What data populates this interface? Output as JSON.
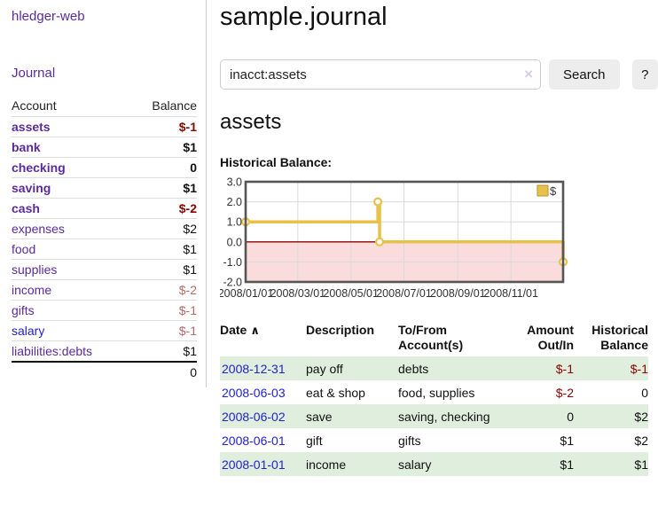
{
  "app_title": "hledger-web",
  "nav": {
    "journal_label": "Journal"
  },
  "sidebar_table": {
    "account_header": "Account",
    "balance_header": "Balance",
    "accounts": [
      {
        "name": "assets",
        "depth": 1,
        "bold": true,
        "link_color": "purple",
        "balance": "$-1",
        "balance_class": "neg-strong"
      },
      {
        "name": "bank",
        "depth": 2,
        "bold": true,
        "link_color": "purple",
        "balance": "$1",
        "balance_class": ""
      },
      {
        "name": "checking",
        "depth": 3,
        "bold": true,
        "link_color": "purple",
        "balance": "0",
        "balance_class": ""
      },
      {
        "name": "saving",
        "depth": 3,
        "bold": true,
        "link_color": "purple",
        "balance": "$1",
        "balance_class": ""
      },
      {
        "name": "cash",
        "depth": 2,
        "bold": true,
        "link_color": "purple",
        "balance": "$-2",
        "balance_class": "neg-strong"
      },
      {
        "name": "expenses",
        "depth": 1,
        "bold": false,
        "link_color": "purple",
        "balance": "$2",
        "balance_class": ""
      },
      {
        "name": "food",
        "depth": 2,
        "bold": false,
        "link_color": "purple",
        "balance": "$1",
        "balance_class": ""
      },
      {
        "name": "supplies",
        "depth": 2,
        "bold": false,
        "link_color": "purple",
        "balance": "$1",
        "balance_class": ""
      },
      {
        "name": "income",
        "depth": 1,
        "bold": false,
        "link_color": "purple",
        "balance": "$-2",
        "balance_class": "neg-soft"
      },
      {
        "name": "gifts",
        "depth": 2,
        "bold": false,
        "link_color": "purple",
        "balance": "$-1",
        "balance_class": "neg-soft"
      },
      {
        "name": "salary",
        "depth": 2,
        "bold": false,
        "link_color": "blue",
        "balance": "$-1",
        "balance_class": "neg-soft"
      },
      {
        "name": "liabilities:debts",
        "depth": 1,
        "bold": false,
        "link_color": "purple",
        "balance": "$1",
        "balance_class": ""
      }
    ],
    "total": "0"
  },
  "header": {
    "title": "sample.journal"
  },
  "search": {
    "value": "inacct:assets",
    "clear_icon": "×",
    "search_label": "Search",
    "help_label": "?"
  },
  "account_page": {
    "title": "assets",
    "chart_label": "Historical Balance:"
  },
  "chart_data": {
    "type": "line",
    "step": true,
    "title": "Historical Balance",
    "series": [
      {
        "name": "$",
        "color": "#e8c04a",
        "points": [
          [
            "2008-01-01",
            1
          ],
          [
            "2008-06-01",
            2
          ],
          [
            "2008-06-03",
            0
          ],
          [
            "2008-12-31",
            -1
          ]
        ]
      }
    ],
    "x_range": [
      "2008-01-01",
      "2008-12-31"
    ],
    "x_ticks": [
      "2008/01/01",
      "2008/03/01",
      "2008/05/01",
      "2008/07/01",
      "2008/09/01",
      "2008/11/01"
    ],
    "y_ticks": [
      "3.0",
      "2.0",
      "1.0",
      "0.0",
      "-1.0",
      "-2.0"
    ],
    "ylim": [
      -2,
      3
    ],
    "grid": true,
    "legend_position": "top-right",
    "legend_label": "$",
    "colors": {
      "negative_fill": "#fbdcdc",
      "zero_line": "#8e0000",
      "grid": "#d9d9d9",
      "plot_border": "#555555",
      "marker_fill": "#ffffff",
      "axis_text": "#333333",
      "legend_fill": "#e8c04a",
      "legend_border": "#b2953a"
    }
  },
  "register": {
    "headers": {
      "date": "Date",
      "sort_icon": "∧",
      "description": "Description",
      "accounts": "To/From Account(s)",
      "amount": "Amount Out/In",
      "balance": "Historical Balance"
    },
    "rows": [
      {
        "date": "2008-12-31",
        "description": "pay off",
        "accounts": "debts",
        "amount": "$-1",
        "amount_class": "neg-strong",
        "balance": "$-1",
        "balance_class": "neg-strong"
      },
      {
        "date": "2008-06-03",
        "description": "eat & shop",
        "accounts": "food, supplies",
        "amount": "$-2",
        "amount_class": "neg-strong",
        "balance": "0",
        "balance_class": ""
      },
      {
        "date": "2008-06-02",
        "description": "save",
        "accounts": "saving, checking",
        "amount": "0",
        "amount_class": "",
        "balance": "$2",
        "balance_class": ""
      },
      {
        "date": "2008-06-01",
        "description": "gift",
        "accounts": "gifts",
        "amount": "$1",
        "amount_class": "",
        "balance": "$2",
        "balance_class": ""
      },
      {
        "date": "2008-01-01",
        "description": "income",
        "accounts": "salary",
        "amount": "$1",
        "amount_class": "",
        "balance": "$1",
        "balance_class": ""
      }
    ]
  },
  "colors": {
    "link_purple": "#5b2a9d",
    "link_blue": "#2222cc",
    "negative_strong": "#8b0000",
    "negative_soft": "#b56a6a",
    "row_stripe_green": "#e0eedd"
  }
}
